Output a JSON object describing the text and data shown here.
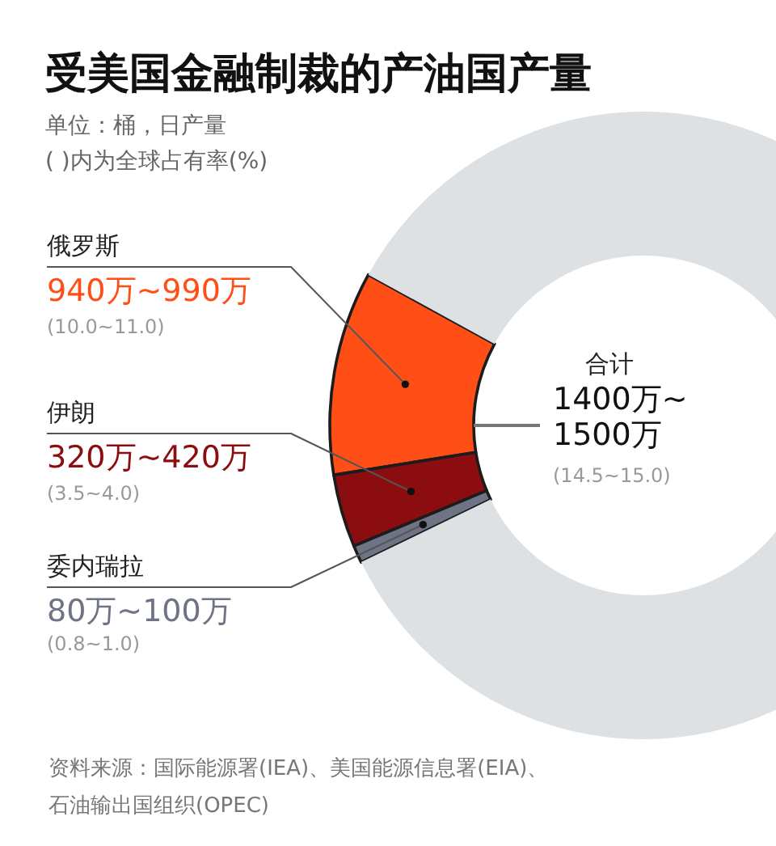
{
  "chart_data": {
    "type": "donut",
    "title": "受美国金融制裁的产油国产量",
    "subtitle": "单位：桶，日产量\n( )内为全球占有率(%)",
    "categories": [
      "俄罗斯",
      "伊朗",
      "委内瑞拉",
      null
    ],
    "values": [
      10.5,
      3.75,
      0.9,
      84.85
    ],
    "colors": [
      "#ff4f17",
      "#8c0d0f",
      "#6f7386",
      "#dde1e4"
    ],
    "annotations": [
      "940万~990万",
      "(10.0~11.0)",
      "320万~420万",
      "(3.5~4.0)",
      "80万~100万",
      "(0.8~1.0)",
      "合计",
      "1400万~\n1500万",
      "(14.5~15.0)",
      "资料来源：国际能源署(IEA)、美国能源信息署(EIA)、",
      "石油输出国组织(OPEC)"
    ]
  }
}
